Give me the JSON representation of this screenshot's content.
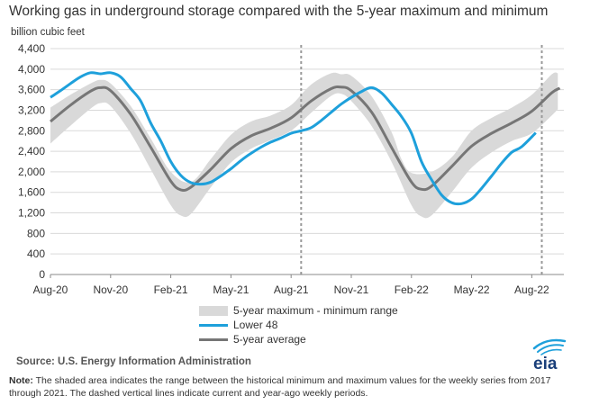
{
  "title": "Working gas in underground  storage compared with the 5-year maximum and minimum",
  "source": "Source:  U.S. Energy Information Administration",
  "note_label": "Note:",
  "note_text": " The shaded area indicates the range between the historical minimum and maximum values for the weekly series from 2017 through 2021. The dashed vertical lines indicate current and year-ago weekly periods.",
  "logo_text": "eia",
  "colors": {
    "band": "#d9d9d9",
    "lower48": "#1ea0db",
    "avg": "#767676",
    "grid": "#d9d9d9",
    "dashed": "#999999"
  },
  "chart_data": {
    "type": "line",
    "ylabel": "billion cubic feet",
    "ylim": [
      0,
      4400
    ],
    "yticks": [
      0,
      400,
      800,
      1200,
      1600,
      2000,
      2400,
      2800,
      3200,
      3600,
      4000,
      4400
    ],
    "ytick_labels": [
      "0",
      "400",
      "800",
      "1,200",
      "1,600",
      "2,000",
      "2,400",
      "2,800",
      "3,200",
      "3,600",
      "4,000",
      "4,400"
    ],
    "xlim": [
      0,
      25.6
    ],
    "xticks": [
      0,
      3,
      6,
      9,
      12,
      15,
      18,
      21,
      24
    ],
    "xtick_labels": [
      "Aug-20",
      "Nov-20",
      "Feb-21",
      "May-21",
      "Aug-21",
      "Nov-21",
      "Feb-22",
      "May-22",
      "Aug-22"
    ],
    "x_units": "months since August 2020",
    "vlines": [
      12.5,
      24.5
    ],
    "legend": [
      "5-year maximum - minimum range",
      "Lower 48",
      "5-year average"
    ],
    "series": [
      {
        "name": "5-year maximum",
        "x": [
          0,
          1,
          2,
          2.5,
          3,
          4,
          5,
          6,
          7,
          8,
          9,
          10,
          11,
          12,
          13,
          14,
          14.5,
          15,
          16,
          17,
          17.5,
          18,
          19,
          20,
          21,
          22,
          23,
          24,
          25,
          25.3
        ],
        "values": [
          3250,
          3500,
          3720,
          3790,
          3720,
          3280,
          2650,
          2000,
          1800,
          2250,
          2720,
          2980,
          3100,
          3300,
          3700,
          3920,
          3900,
          3870,
          3480,
          2780,
          2250,
          1980,
          2000,
          2280,
          2800,
          3050,
          3250,
          3500,
          3900,
          3920
        ]
      },
      {
        "name": "5-year minimum",
        "x": [
          0,
          1,
          2,
          2.5,
          3,
          4,
          5,
          6,
          6.5,
          7,
          8,
          9,
          10,
          11,
          12,
          13,
          14,
          14.5,
          15,
          16,
          17,
          18,
          18.5,
          19,
          20,
          21,
          22,
          23,
          24,
          25,
          25.3
        ],
        "values": [
          2550,
          2900,
          3230,
          3340,
          3280,
          2750,
          2050,
          1350,
          1150,
          1180,
          1700,
          2180,
          2450,
          2620,
          2800,
          3150,
          3480,
          3520,
          3380,
          2900,
          2200,
          1350,
          1130,
          1150,
          1600,
          2080,
          2380,
          2600,
          2750,
          3100,
          3220
        ]
      },
      {
        "name": "5-year average",
        "x": [
          0,
          1,
          2,
          2.5,
          3,
          4,
          5,
          6,
          6.5,
          7,
          8,
          9,
          10,
          11,
          12,
          13,
          14,
          14.5,
          15,
          16,
          17,
          18,
          18.5,
          19,
          20,
          21,
          22,
          23,
          24,
          25,
          25.4
        ],
        "values": [
          2980,
          3300,
          3570,
          3640,
          3580,
          3120,
          2480,
          1820,
          1650,
          1700,
          2050,
          2450,
          2700,
          2850,
          3050,
          3380,
          3620,
          3650,
          3580,
          3170,
          2480,
          1800,
          1660,
          1720,
          2100,
          2500,
          2750,
          2950,
          3180,
          3540,
          3630
        ]
      },
      {
        "name": "Lower 48",
        "x": [
          0,
          0.5,
          1,
          1.5,
          2,
          2.5,
          3,
          3.5,
          4,
          4.5,
          5,
          5.5,
          6,
          6.5,
          7,
          7.5,
          8,
          8.5,
          9,
          9.5,
          10,
          10.5,
          11,
          11.5,
          12,
          12.5,
          13,
          13.5,
          14,
          14.5,
          15,
          15.5,
          16,
          16.5,
          17,
          17.5,
          18,
          18.5,
          19,
          19.5,
          20,
          20.5,
          21,
          21.5,
          22,
          22.5,
          23,
          23.5,
          24.2
        ],
        "values": [
          3450,
          3580,
          3720,
          3850,
          3930,
          3910,
          3930,
          3850,
          3620,
          3380,
          2950,
          2600,
          2200,
          1930,
          1790,
          1760,
          1800,
          1920,
          2060,
          2220,
          2360,
          2480,
          2580,
          2660,
          2750,
          2800,
          2860,
          3000,
          3160,
          3320,
          3450,
          3560,
          3640,
          3540,
          3320,
          3080,
          2750,
          2200,
          1850,
          1550,
          1400,
          1380,
          1470,
          1680,
          1920,
          2170,
          2380,
          2490,
          2760
        ]
      }
    ]
  }
}
